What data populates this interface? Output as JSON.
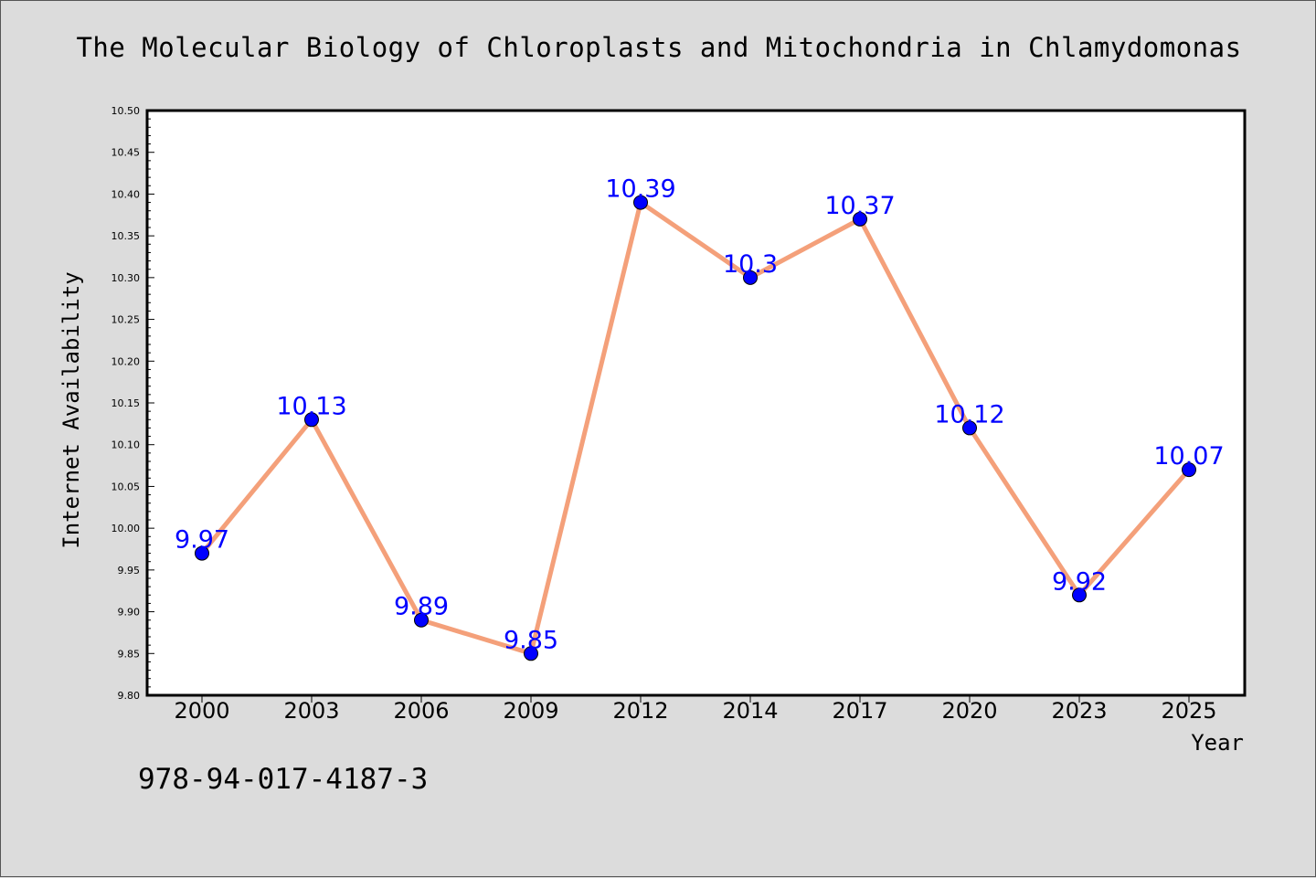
{
  "chart_data": {
    "type": "line",
    "title": "The Molecular Biology of Chloroplasts and Mitochondria in Chlamydomonas",
    "xlabel": "Year",
    "ylabel": "Internet Availability",
    "categories": [
      "2000",
      "2003",
      "2006",
      "2009",
      "2012",
      "2014",
      "2017",
      "2020",
      "2023",
      "2025"
    ],
    "series": [
      {
        "values": [
          9.97,
          10.13,
          9.89,
          9.85,
          10.39,
          10.3,
          10.37,
          10.12,
          9.92,
          10.07
        ],
        "labels": [
          "9.97",
          "10.13",
          "9.89",
          "9.85",
          "10.39",
          "10.3",
          "10.37",
          "10.12",
          "9.92",
          "10.07"
        ]
      }
    ],
    "ylim": [
      9.8,
      10.5
    ],
    "yticks": [
      "9.80",
      "9.85",
      "9.90",
      "9.95",
      "10.00",
      "10.05",
      "10.10",
      "10.15",
      "10.20",
      "10.25",
      "10.30",
      "10.35",
      "10.40",
      "10.45",
      "10.50"
    ],
    "line_color": "#f4a07a",
    "marker_color": "#0000ff",
    "label_color": "#0000ff",
    "grid": false,
    "legend": false
  },
  "annotation": "978-94-017-4187-3"
}
